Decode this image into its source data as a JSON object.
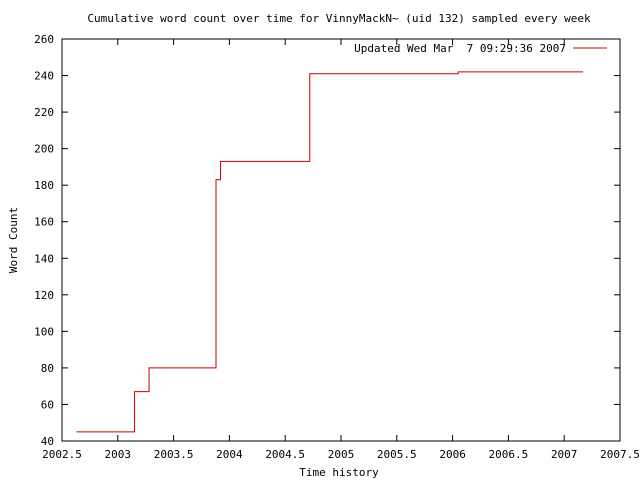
{
  "chart_data": {
    "type": "line",
    "title": "Cumulative word count over time for VinnyMackN~ (uid 132) sampled every week",
    "xlabel": "Time history",
    "ylabel": "Word Count",
    "xlim": [
      2002.5,
      2007.5
    ],
    "ylim": [
      40,
      260
    ],
    "x_ticks": [
      2002.5,
      2003,
      2003.5,
      2004,
      2004.5,
      2005,
      2005.5,
      2006,
      2006.5,
      2007,
      2007.5
    ],
    "x_tick_labels": [
      "2002.5",
      "2003",
      "2003.5",
      "2004",
      "2004.5",
      "2005",
      "2005.5",
      "2006",
      "2006.5",
      "2007",
      "2007.5"
    ],
    "y_ticks": [
      40,
      60,
      80,
      100,
      120,
      140,
      160,
      180,
      200,
      220,
      240,
      260
    ],
    "y_tick_labels": [
      "40",
      "60",
      "80",
      "100",
      "120",
      "140",
      "160",
      "180",
      "200",
      "220",
      "240",
      "260"
    ],
    "grid": false,
    "legend_position": "top-right",
    "series": [
      {
        "name": "Updated Wed Mar  7 09:29:36 2007",
        "color": "#cc0000",
        "step": true,
        "x": [
          2002.63,
          2003.15,
          2003.28,
          2003.88,
          2003.92,
          2004.72,
          2006.05,
          2007.17
        ],
        "y": [
          45,
          67,
          80,
          183,
          193,
          241,
          242,
          242
        ]
      }
    ]
  }
}
